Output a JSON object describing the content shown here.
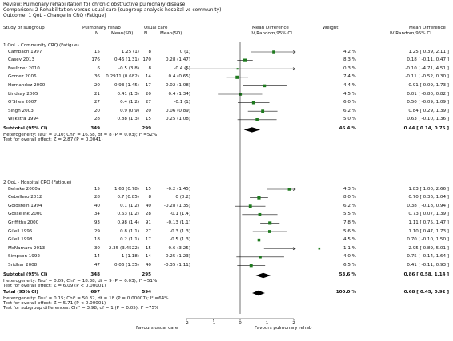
{
  "header": {
    "review": "Review:  Pulmonary rehabilitation for chronic obstructive pulmonary disease",
    "comparison": "Comparison:  2 Rehabilitation versus usual care (subgroup analysis hospital vs community)",
    "outcome": "Outcome:  1 QoL - Change in CRQ (Fatigue)"
  },
  "columns": {
    "study": "Study or subgroup",
    "rehab": "Pulmonary rehab",
    "usual": "Usual care",
    "n1": "N",
    "mean1": "Mean(SD)",
    "n2": "N",
    "mean2": "Mean(SD)",
    "md": "Mean Difference",
    "md_method": "IV,Random,95% CI",
    "weight": "Weight",
    "md2": "Mean Difference",
    "md2_method": "IV,Random,95% CI"
  },
  "chart_data": {
    "type": "forest",
    "xlim": [
      -2,
      2
    ],
    "ticks": [
      "-2",
      "-1",
      "0",
      "1",
      "2"
    ],
    "xlabel_left": "Favours usual care",
    "xlabel_right": "Favours pulmonary rehab",
    "subgroups": [
      {
        "title": "1 QoL - Community CRQ (Fatigue)",
        "studies": [
          {
            "name": "Cambach 1997",
            "n1": "15",
            "m1": "1.25 (1)",
            "n2": "8",
            "m2": "0 (1)",
            "weight": "4.2 %",
            "ci": "1.25 [ 0.39, 2.11 ]",
            "md": 1.25,
            "lo": 0.39,
            "hi": 2.11
          },
          {
            "name": "Casey 2013",
            "n1": "176",
            "m1": "0.46 (1.31)",
            "n2": "170",
            "m2": "0.28 (1.47)",
            "weight": "8.3 %",
            "ci": "0.18 [ -0.11, 0.47 ]",
            "md": 0.18,
            "lo": -0.11,
            "hi": 0.47
          },
          {
            "name": "Faulkner 2010",
            "n1": "6",
            "m1": "-0.5 (3.8)",
            "n2": "8",
            "m2": "-0.4 (5)",
            "weight": "0.3 %",
            "ci": "-0.10 [ -4.71, 4.51 ]",
            "md": -0.1,
            "lo": -4.71,
            "hi": 4.51
          },
          {
            "name": "Gomez 2006",
            "n1": "36",
            "m1": "0.2911 (0.682)",
            "n2": "14",
            "m2": "0.4 (0.65)",
            "weight": "7.4 %",
            "ci": "-0.11 [ -0.52, 0.30 ]",
            "md": -0.11,
            "lo": -0.52,
            "hi": 0.3
          },
          {
            "name": "Hernandez 2000",
            "n1": "20",
            "m1": "0.93 (1.45)",
            "n2": "17",
            "m2": "0.02 (1.08)",
            "weight": "4.4 %",
            "ci": "0.91 [ 0.09, 1.73 ]",
            "md": 0.91,
            "lo": 0.09,
            "hi": 1.73
          },
          {
            "name": "Lindsay 2005",
            "n1": "21",
            "m1": "0.41 (1.3)",
            "n2": "20",
            "m2": "0.4 (1.34)",
            "weight": "4.5 %",
            "ci": "0.01 [ -0.80, 0.82 ]",
            "md": 0.01,
            "lo": -0.8,
            "hi": 0.82
          },
          {
            "name": "O'Shea 2007",
            "n1": "27",
            "m1": "0.4 (1.2)",
            "n2": "27",
            "m2": "-0.1 (1)",
            "weight": "6.0 %",
            "ci": "0.50 [ -0.09, 1.09 ]",
            "md": 0.5,
            "lo": -0.09,
            "hi": 1.09
          },
          {
            "name": "Singh 2003",
            "n1": "20",
            "m1": "0.9 (0.9)",
            "n2": "20",
            "m2": "0.06 (0.89)",
            "weight": "6.2 %",
            "ci": "0.84 [ 0.29, 1.39 ]",
            "md": 0.84,
            "lo": 0.29,
            "hi": 1.39
          },
          {
            "name": "Wijkstra 1994",
            "n1": "28",
            "m1": "0.88 (1.3)",
            "n2": "15",
            "m2": "0.25 (1.08)",
            "weight": "5.0 %",
            "ci": "0.63 [ -0.10, 1.36 ]",
            "md": 0.63,
            "lo": -0.1,
            "hi": 1.36
          }
        ],
        "subtotal": {
          "label": "Subtotal (95% CI)",
          "n1": "349",
          "n2": "299",
          "weight": "46.4 %",
          "ci": "0.44 [ 0.14, 0.75 ]",
          "md": 0.44,
          "lo": 0.14,
          "hi": 0.75
        },
        "het": "Heterogeneity: Tau² = 0.10; Chi² = 16.68, df = 8 (P = 0.03); I² =52%",
        "test": "Test for overall effect: Z = 2.87 (P = 0.0041)"
      },
      {
        "title": "2 QoL - Hospital CRQ (Fatigue)",
        "studies": [
          {
            "name": "Behnke 2000a",
            "n1": "15",
            "m1": "1.63 (0.78)",
            "n2": "15",
            "m2": "-0.2 (1.45)",
            "weight": "4.3 %",
            "ci": "1.83 [ 1.00, 2.66 ]",
            "md": 1.83,
            "lo": 1.0,
            "hi": 2.66
          },
          {
            "name": "Cebollero 2012",
            "n1": "28",
            "m1": "0.7 (0.85)",
            "n2": "8",
            "m2": "0 (0.2)",
            "weight": "8.0 %",
            "ci": "0.70 [ 0.36, 1.04 ]",
            "md": 0.7,
            "lo": 0.36,
            "hi": 1.04
          },
          {
            "name": "Goldstein 1994",
            "n1": "40",
            "m1": "0.1 (1.2)",
            "n2": "40",
            "m2": "-0.28 (1.35)",
            "weight": "6.2 %",
            "ci": "0.38 [ -0.18, 0.94 ]",
            "md": 0.38,
            "lo": -0.18,
            "hi": 0.94
          },
          {
            "name": "Gosselink 2000",
            "n1": "34",
            "m1": "0.63 (1.2)",
            "n2": "28",
            "m2": "-0.1 (1.4)",
            "weight": "5.5 %",
            "ci": "0.73 [ 0.07, 1.39 ]",
            "md": 0.73,
            "lo": 0.07,
            "hi": 1.39
          },
          {
            "name": "Griffiths 2000",
            "n1": "93",
            "m1": "0.98 (1.4)",
            "n2": "91",
            "m2": "-0.13 (1.1)",
            "weight": "7.8 %",
            "ci": "1.11 [ 0.75, 1.47 ]",
            "md": 1.11,
            "lo": 0.75,
            "hi": 1.47
          },
          {
            "name": "Güell 1995",
            "n1": "29",
            "m1": "0.8 (1.1)",
            "n2": "27",
            "m2": "-0.3 (1.3)",
            "weight": "5.6 %",
            "ci": "1.10 [ 0.47, 1.73 ]",
            "md": 1.1,
            "lo": 0.47,
            "hi": 1.73
          },
          {
            "name": "Güell 1998",
            "n1": "18",
            "m1": "0.2 (1.1)",
            "n2": "17",
            "m2": "-0.5 (1.3)",
            "weight": "4.5 %",
            "ci": "0.70 [ -0.10, 1.50 ]",
            "md": 0.7,
            "lo": -0.1,
            "hi": 1.5
          },
          {
            "name": "McNamara 2013",
            "n1": "30",
            "m1": "2.35 (3.4522)",
            "n2": "15",
            "m2": "-0.6 (3.25)",
            "weight": "1.1 %",
            "ci": "2.95 [ 0.89, 5.01 ]",
            "md": 2.95,
            "lo": 0.89,
            "hi": 5.01
          },
          {
            "name": "Simpson 1992",
            "n1": "14",
            "m1": "1 (1.18)",
            "n2": "14",
            "m2": "0.25 (1.23)",
            "weight": "4.0 %",
            "ci": "0.75 [ -0.14, 1.64 ]",
            "md": 0.75,
            "lo": -0.14,
            "hi": 1.64
          },
          {
            "name": "Sridhar 2008",
            "n1": "47",
            "m1": "0.06 (1.35)",
            "n2": "40",
            "m2": "-0.35 (1.11)",
            "weight": "6.5 %",
            "ci": "0.41 [ -0.11, 0.93 ]",
            "md": 0.41,
            "lo": -0.11,
            "hi": 0.93
          }
        ],
        "subtotal": {
          "label": "Subtotal (95% CI)",
          "n1": "348",
          "n2": "295",
          "weight": "53.6 %",
          "ci": "0.86 [ 0.58, 1.14 ]",
          "md": 0.86,
          "lo": 0.58,
          "hi": 1.14
        },
        "het": "Heterogeneity: Tau² = 0.09; Chi² = 18.38, df = 9 (P = 0.03); I² =51%",
        "test": "Test for overall effect: Z = 6.09 (P < 0.00001)"
      }
    ],
    "total": {
      "label": "Total (95% CI)",
      "n1": "697",
      "n2": "594",
      "weight": "100.0 %",
      "ci": "0.68 [ 0.45, 0.92 ]",
      "md": 0.68,
      "lo": 0.45,
      "hi": 0.92
    },
    "total_het": "Heterogeneity: Tau² = 0.15; Chi² = 50.32, df = 18 (P = 0.00007); I² =64%",
    "total_test": "Test for overall effect: Z = 5.71 (P < 0.00001)",
    "subgroup_diff": "Test for subgroup differences: Chi² = 3.98, df = 1 (P = 0.05), I² =75%",
    "colors": {
      "square": "#1e7a1e",
      "diamond": "#000000",
      "line": "#111111"
    }
  }
}
